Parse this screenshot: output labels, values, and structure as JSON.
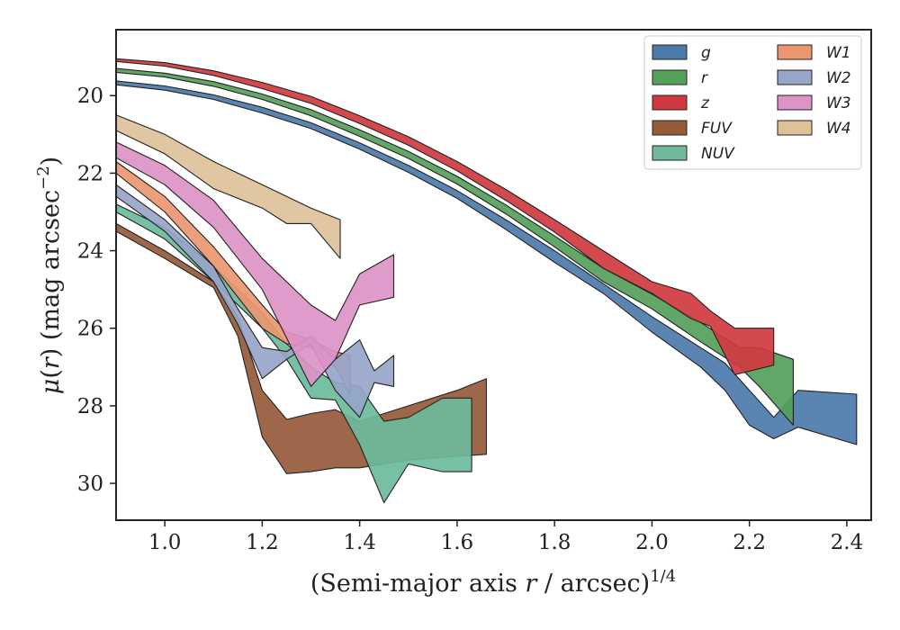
{
  "chart_data": {
    "type": "area",
    "xlabel": "(Semi-major axis r / arcsec)^1/4",
    "ylabel": "μ(r) (mag arcsec^−2)",
    "xlim": [
      0.9,
      2.45
    ],
    "ylim": [
      30.95,
      18.3
    ],
    "y_inverted": true,
    "grid": false,
    "legend_position": "top-right",
    "x_ticks": [
      "1.0",
      "1.2",
      "1.4",
      "1.6",
      "1.8",
      "2.0",
      "2.2",
      "2.4"
    ],
    "y_ticks": [
      "20",
      "22",
      "24",
      "26",
      "28",
      "30"
    ],
    "colors": {
      "g": "#4C7AAB",
      "r": "#55A05A",
      "z": "#D0393F",
      "FUV": "#965A3B",
      "NUV": "#6DBB9B",
      "W1": "#EC9670",
      "W2": "#97A5C9",
      "W3": "#DC93C6",
      "W4": "#DDC199"
    },
    "series": [
      {
        "name": "g",
        "x": [
          0.9,
          1.0,
          1.1,
          1.2,
          1.3,
          1.4,
          1.5,
          1.6,
          1.7,
          1.8,
          1.9,
          2.0,
          2.1,
          2.15,
          2.2,
          2.25,
          2.3,
          2.42
        ],
        "y_upper": [
          19.62,
          19.75,
          19.98,
          20.3,
          20.7,
          21.22,
          21.8,
          22.45,
          23.2,
          24.0,
          24.85,
          25.7,
          26.5,
          26.9,
          27.6,
          28.3,
          27.6,
          27.7
        ],
        "y_lower": [
          19.72,
          19.86,
          20.1,
          20.45,
          20.85,
          21.38,
          21.98,
          22.65,
          23.45,
          24.3,
          25.1,
          26.1,
          27.0,
          27.6,
          28.5,
          28.85,
          28.55,
          29.0
        ]
      },
      {
        "name": "r",
        "x": [
          0.9,
          1.0,
          1.1,
          1.2,
          1.3,
          1.4,
          1.5,
          1.6,
          1.7,
          1.8,
          1.9,
          2.0,
          2.1,
          2.18,
          2.22,
          2.29
        ],
        "y_upper": [
          19.3,
          19.42,
          19.64,
          19.96,
          20.36,
          20.88,
          21.44,
          22.08,
          22.82,
          23.62,
          24.45,
          25.12,
          25.85,
          26.5,
          26.5,
          26.8
        ],
        "y_lower": [
          19.4,
          19.52,
          19.76,
          20.1,
          20.52,
          21.05,
          21.62,
          22.28,
          23.05,
          23.9,
          24.8,
          25.5,
          26.35,
          27.0,
          27.5,
          28.5
        ]
      },
      {
        "name": "z",
        "x": [
          0.9,
          1.0,
          1.1,
          1.2,
          1.3,
          1.4,
          1.5,
          1.6,
          1.7,
          1.8,
          1.9,
          2.0,
          2.08,
          2.12,
          2.17,
          2.25
        ],
        "y_upper": [
          19.05,
          19.15,
          19.36,
          19.66,
          20.02,
          20.52,
          21.06,
          21.7,
          22.42,
          23.2,
          24.0,
          24.8,
          25.1,
          25.55,
          26.0,
          26.0
        ],
        "y_lower": [
          19.12,
          19.24,
          19.48,
          19.82,
          20.2,
          20.72,
          21.28,
          21.94,
          22.7,
          23.52,
          24.45,
          25.1,
          25.75,
          25.95,
          27.2,
          26.95
        ]
      },
      {
        "name": "FUV",
        "x": [
          0.9,
          1.0,
          1.1,
          1.15,
          1.2,
          1.25,
          1.3,
          1.35,
          1.4,
          1.5,
          1.6,
          1.66
        ],
        "y_upper": [
          23.3,
          24.0,
          24.8,
          25.7,
          27.6,
          28.35,
          28.2,
          28.1,
          28.4,
          28.0,
          27.6,
          27.3
        ],
        "y_lower": [
          23.5,
          24.2,
          24.95,
          26.2,
          28.8,
          29.75,
          29.7,
          29.6,
          29.6,
          29.4,
          29.3,
          29.25
        ]
      },
      {
        "name": "NUV",
        "x": [
          0.9,
          1.0,
          1.1,
          1.2,
          1.25,
          1.3,
          1.35,
          1.4,
          1.45,
          1.5,
          1.57,
          1.63
        ],
        "y_upper": [
          22.8,
          23.4,
          24.4,
          25.6,
          26.4,
          27.0,
          27.4,
          27.5,
          28.4,
          28.3,
          27.8,
          27.8
        ],
        "y_lower": [
          23.0,
          23.7,
          24.8,
          26.0,
          26.8,
          27.8,
          27.85,
          29.0,
          30.5,
          29.5,
          29.7,
          29.7
        ]
      },
      {
        "name": "W1",
        "x": [
          0.9,
          1.0,
          1.1,
          1.2,
          1.25,
          1.3,
          1.35,
          1.38
        ],
        "y_upper": [
          21.7,
          22.6,
          23.9,
          25.4,
          26.1,
          26.3,
          26.6,
          26.7
        ],
        "y_lower": [
          22.0,
          23.0,
          24.4,
          26.0,
          26.4,
          26.5,
          27.0,
          27.7
        ]
      },
      {
        "name": "W2",
        "x": [
          0.9,
          1.0,
          1.1,
          1.15,
          1.2,
          1.25,
          1.3,
          1.35,
          1.4,
          1.43,
          1.47
        ],
        "y_upper": [
          22.3,
          23.2,
          24.4,
          25.5,
          26.5,
          26.6,
          26.2,
          26.8,
          26.3,
          27.1,
          26.7
        ],
        "y_lower": [
          22.6,
          23.5,
          24.8,
          25.9,
          27.3,
          26.8,
          26.4,
          27.6,
          28.3,
          27.4,
          27.5
        ]
      },
      {
        "name": "W3",
        "x": [
          0.9,
          1.0,
          1.1,
          1.2,
          1.3,
          1.35,
          1.4,
          1.47
        ],
        "y_upper": [
          21.2,
          21.8,
          22.7,
          24.2,
          25.4,
          25.8,
          24.6,
          24.1
        ],
        "y_lower": [
          21.6,
          22.3,
          23.4,
          25.0,
          27.5,
          26.8,
          25.4,
          25.2
        ]
      },
      {
        "name": "W4",
        "x": [
          0.9,
          1.0,
          1.1,
          1.2,
          1.25,
          1.3,
          1.36
        ],
        "y_upper": [
          20.5,
          21.0,
          21.7,
          22.3,
          22.6,
          22.9,
          23.2
        ],
        "y_lower": [
          20.9,
          21.5,
          22.4,
          22.9,
          23.3,
          23.3,
          24.2
        ]
      }
    ]
  }
}
